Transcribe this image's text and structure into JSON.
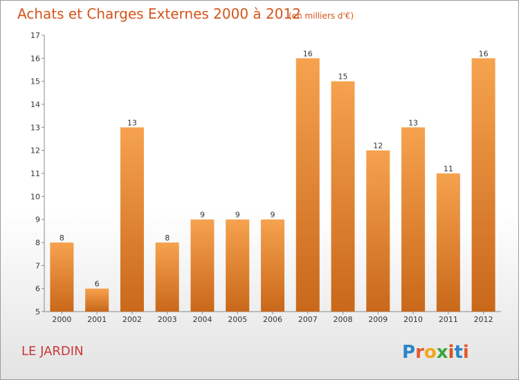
{
  "title": "Achats et Charges Externes 2000 à 2012",
  "subtitle": "(en milliers d'€)",
  "commune": "LE JARDIN",
  "logo": {
    "letters": [
      "P",
      "r",
      "o",
      "x",
      "i",
      "t",
      "i"
    ],
    "colors": [
      "#2a86c9",
      "#e8572a",
      "#f2a71b",
      "#3aa53a",
      "#d4541a",
      "#2a86c9",
      "#e8572a"
    ]
  },
  "colors": {
    "bar_top": "#f6a24e",
    "bar_bottom": "#c9681a",
    "title": "#d4541a",
    "commune": "#c8373a"
  },
  "chart_data": {
    "type": "bar",
    "title": "Achats et Charges Externes 2000 à 2012",
    "subtitle": "(en milliers d'€)",
    "categories": [
      "2000",
      "2001",
      "2002",
      "2003",
      "2004",
      "2005",
      "2006",
      "2007",
      "2008",
      "2009",
      "2010",
      "2011",
      "2012"
    ],
    "values": [
      8,
      6,
      13,
      8,
      9,
      9,
      9,
      16,
      15,
      12,
      13,
      11,
      16
    ],
    "ylim": [
      5,
      17
    ],
    "yticks": [
      5,
      6,
      7,
      8,
      9,
      10,
      11,
      12,
      13,
      14,
      15,
      16,
      17
    ],
    "grid": false,
    "legend": "none"
  }
}
